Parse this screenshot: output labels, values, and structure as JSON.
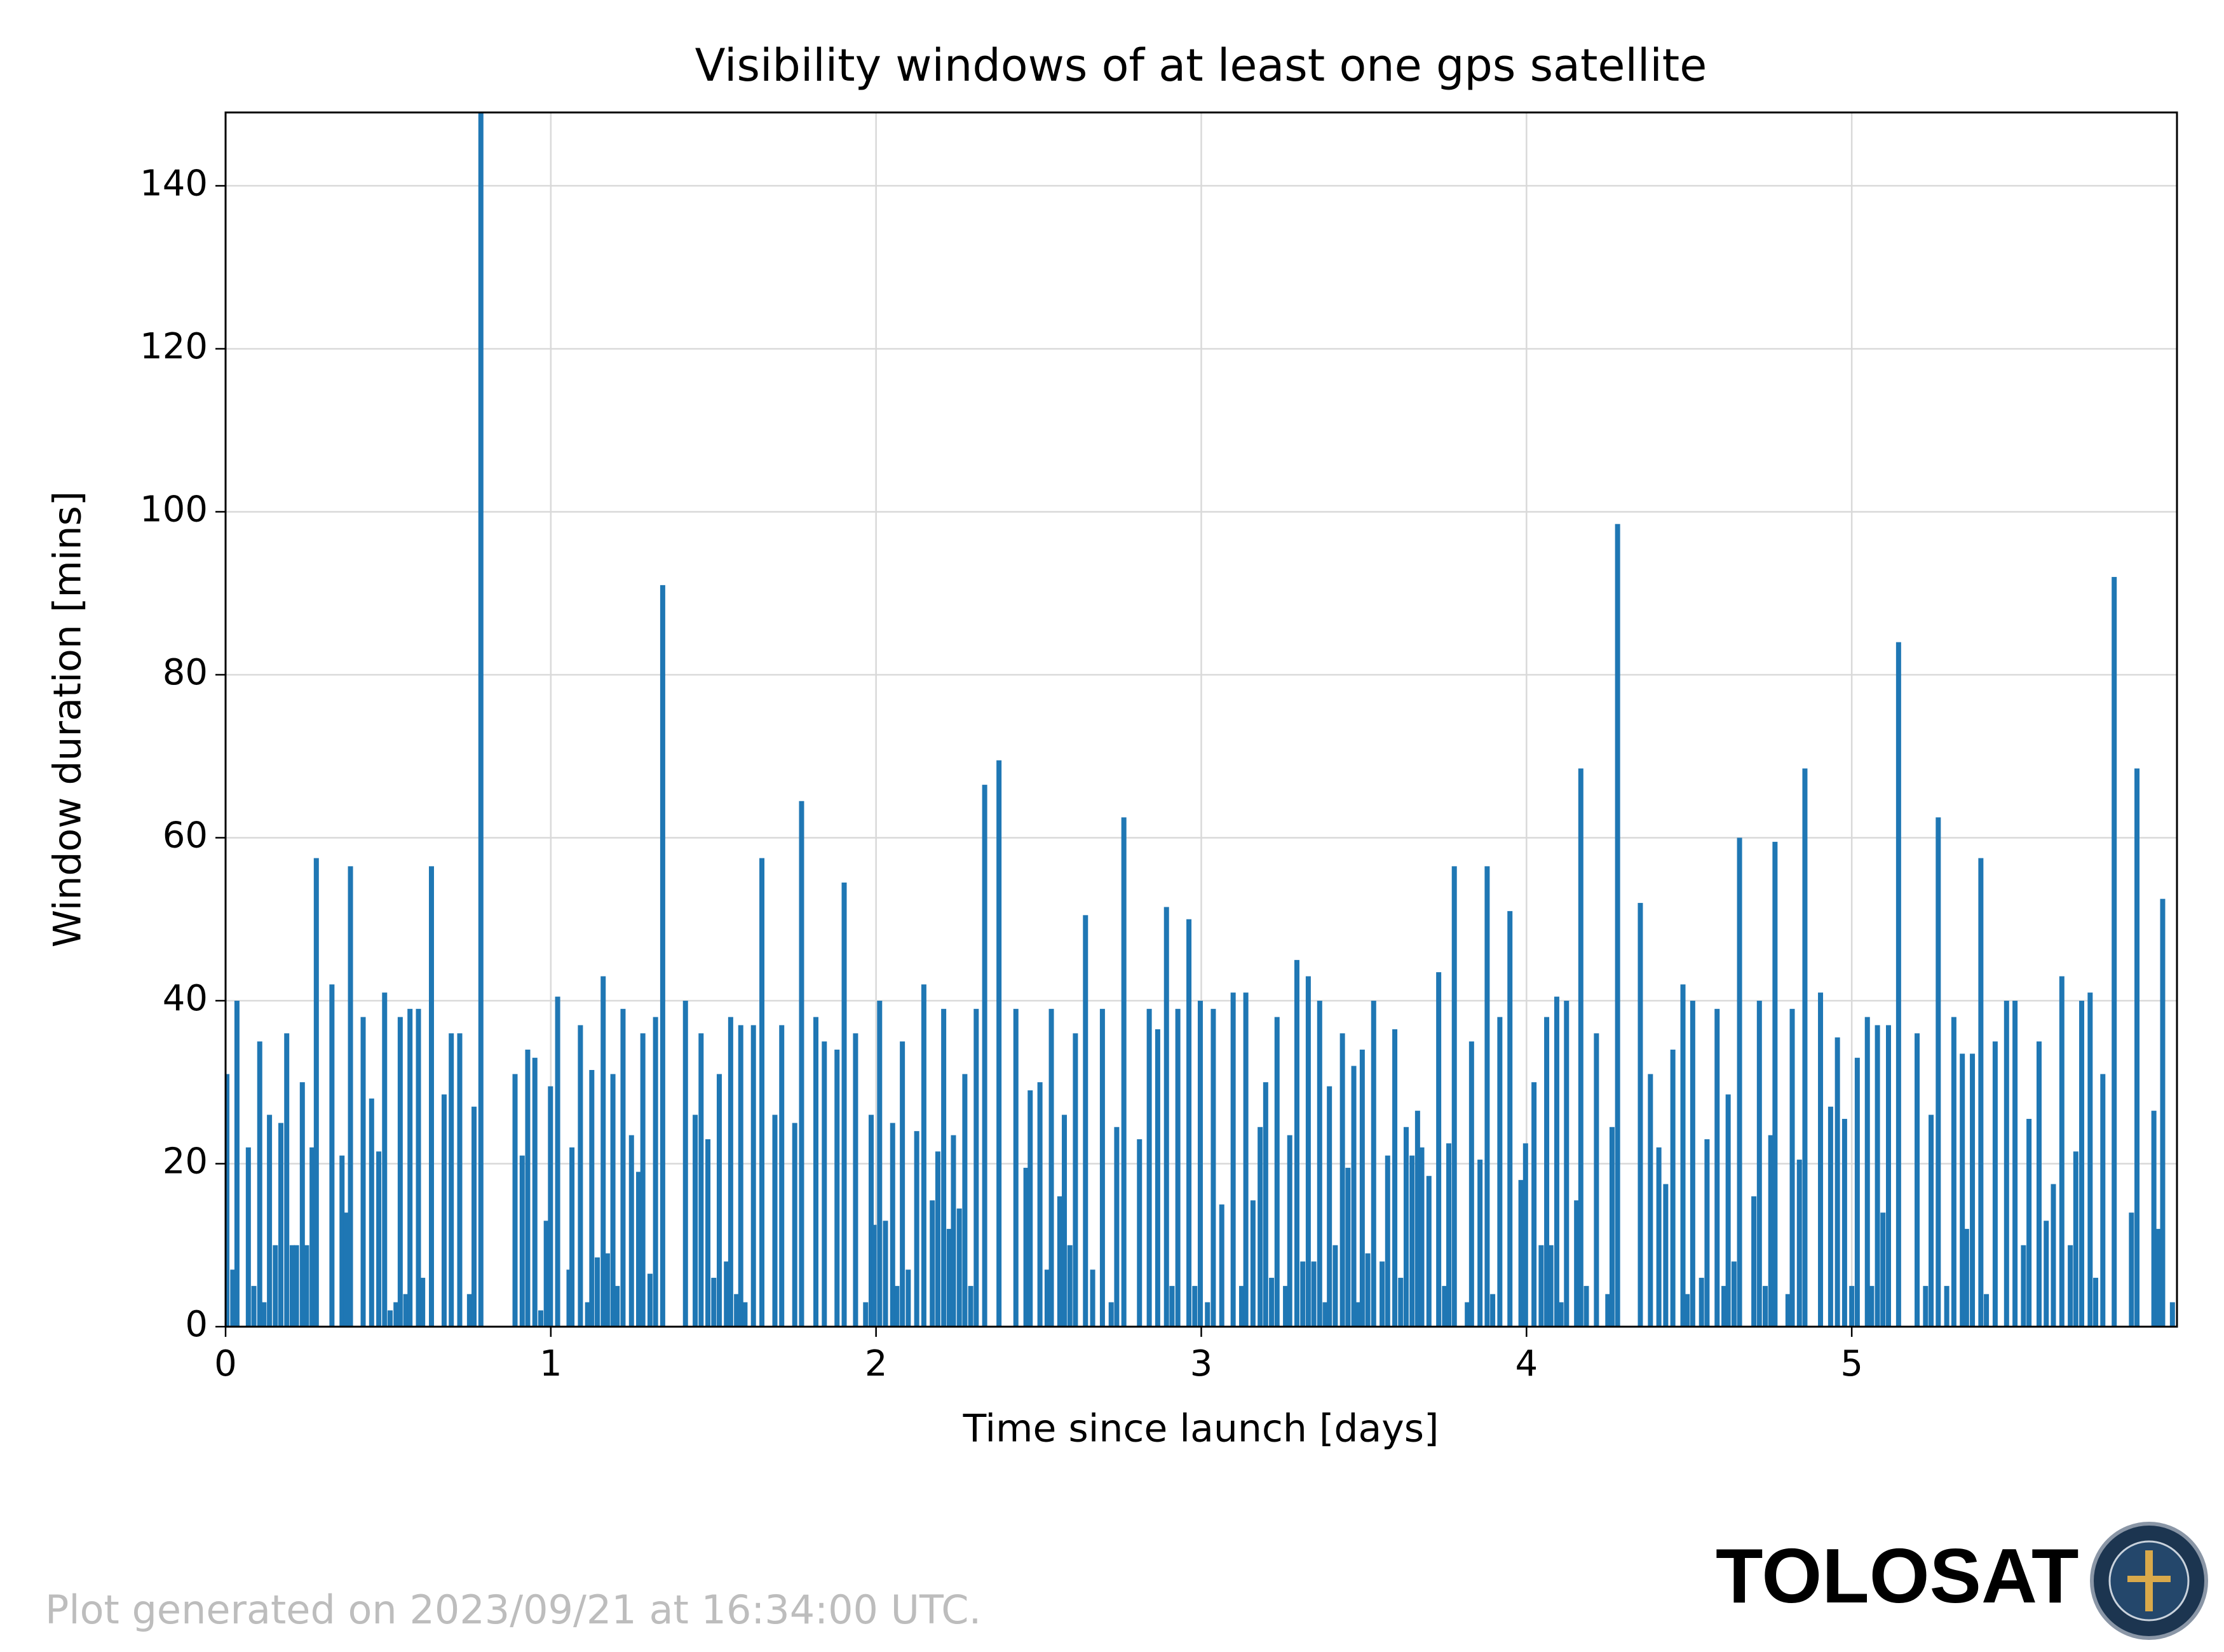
{
  "chart_data": {
    "type": "bar",
    "title": "Visibility windows of at least one gps satellite",
    "xlabel": "Time since launch [days]",
    "ylabel": "Window duration [mins]",
    "color": "#1f77b4",
    "grid": true,
    "xlim": [
      0,
      6
    ],
    "ylim": [
      0,
      149
    ],
    "xticks": [
      0,
      1,
      2,
      3,
      4,
      5
    ],
    "yticks": [
      0,
      20,
      40,
      60,
      80,
      100,
      120,
      140
    ],
    "x": [
      0.004,
      0.022,
      0.035,
      0.07,
      0.087,
      0.105,
      0.118,
      0.135,
      0.153,
      0.17,
      0.188,
      0.205,
      0.218,
      0.236,
      0.249,
      0.266,
      0.279,
      0.327,
      0.358,
      0.371,
      0.384,
      0.423,
      0.449,
      0.471,
      0.489,
      0.506,
      0.524,
      0.537,
      0.554,
      0.567,
      0.593,
      0.606,
      0.633,
      0.672,
      0.694,
      0.72,
      0.75,
      0.764,
      0.785,
      0.89,
      0.912,
      0.929,
      0.951,
      0.969,
      0.986,
      0.999,
      1.021,
      1.056,
      1.065,
      1.091,
      1.113,
      1.126,
      1.143,
      1.161,
      1.174,
      1.191,
      1.204,
      1.222,
      1.248,
      1.27,
      1.283,
      1.305,
      1.322,
      1.344,
      1.414,
      1.444,
      1.462,
      1.483,
      1.501,
      1.518,
      1.54,
      1.553,
      1.571,
      1.584,
      1.597,
      1.623,
      1.649,
      1.689,
      1.71,
      1.75,
      1.771,
      1.815,
      1.841,
      1.88,
      1.902,
      1.937,
      1.968,
      1.985,
      1.994,
      2.011,
      2.029,
      2.051,
      2.064,
      2.081,
      2.099,
      2.125,
      2.147,
      2.173,
      2.19,
      2.208,
      2.225,
      2.238,
      2.256,
      2.273,
      2.291,
      2.308,
      2.334,
      2.378,
      2.43,
      2.461,
      2.474,
      2.504,
      2.526,
      2.539,
      2.565,
      2.579,
      2.596,
      2.613,
      2.644,
      2.666,
      2.696,
      2.723,
      2.74,
      2.762,
      2.81,
      2.84,
      2.866,
      2.893,
      2.91,
      2.928,
      2.962,
      2.98,
      2.997,
      3.019,
      3.037,
      3.063,
      3.098,
      3.124,
      3.137,
      3.159,
      3.181,
      3.198,
      3.216,
      3.233,
      3.259,
      3.272,
      3.294,
      3.312,
      3.329,
      3.346,
      3.364,
      3.381,
      3.394,
      3.412,
      3.434,
      3.451,
      3.469,
      3.482,
      3.495,
      3.512,
      3.53,
      3.556,
      3.573,
      3.595,
      3.613,
      3.63,
      3.648,
      3.665,
      3.678,
      3.7,
      3.73,
      3.748,
      3.761,
      3.778,
      3.818,
      3.831,
      3.857,
      3.879,
      3.896,
      3.918,
      3.949,
      3.983,
      3.997,
      4.023,
      4.045,
      4.062,
      4.075,
      4.093,
      4.106,
      4.123,
      4.154,
      4.167,
      4.184,
      4.215,
      4.25,
      4.263,
      4.28,
      4.35,
      4.381,
      4.407,
      4.428,
      4.45,
      4.481,
      4.494,
      4.511,
      4.538,
      4.555,
      4.586,
      4.607,
      4.62,
      4.638,
      4.655,
      4.699,
      4.716,
      4.734,
      4.751,
      4.764,
      4.804,
      4.817,
      4.839,
      4.856,
      4.904,
      4.935,
      4.956,
      4.978,
      5.0,
      5.017,
      5.048,
      5.061,
      5.079,
      5.096,
      5.113,
      5.144,
      5.201,
      5.227,
      5.244,
      5.266,
      5.292,
      5.314,
      5.34,
      5.353,
      5.371,
      5.397,
      5.414,
      5.441,
      5.476,
      5.502,
      5.528,
      5.545,
      5.576,
      5.598,
      5.62,
      5.646,
      5.672,
      5.689,
      5.707,
      5.733,
      5.75,
      5.772,
      5.807,
      5.86,
      5.877,
      5.929,
      5.942,
      5.956,
      5.986
    ],
    "values": [
      31,
      7,
      40,
      22,
      5,
      35,
      3,
      26,
      10,
      25,
      36,
      10,
      10,
      30,
      10,
      22,
      57.5,
      42,
      21,
      14,
      56.5,
      38,
      28,
      21.5,
      41,
      2,
      3,
      38,
      4,
      39,
      39,
      6,
      56.5,
      28.5,
      36,
      36,
      4,
      27,
      150,
      31,
      21,
      34,
      33,
      2,
      13,
      29.5,
      40.5,
      7,
      22,
      37,
      3,
      31.5,
      8.5,
      43,
      9,
      31,
      5,
      39,
      23.5,
      19,
      36,
      6.5,
      38,
      91,
      40,
      26,
      36,
      23,
      6,
      31,
      8,
      38,
      4,
      37,
      3,
      37,
      57.5,
      26,
      37,
      25,
      64.5,
      38,
      35,
      34,
      54.5,
      36,
      3,
      26,
      12.5,
      40,
      13,
      25,
      5,
      35,
      7,
      24,
      42,
      15.5,
      21.5,
      39,
      12,
      23.5,
      14.5,
      31,
      5,
      39,
      66.5,
      69.5,
      39,
      19.5,
      29,
      30,
      7,
      39,
      16,
      26,
      10,
      36,
      50.5,
      7,
      39,
      3,
      24.5,
      62.5,
      23,
      39,
      36.5,
      51.5,
      5,
      39,
      50,
      5,
      40,
      3,
      39,
      15,
      41,
      5,
      41,
      15.5,
      24.5,
      30,
      6,
      38,
      5,
      23.5,
      45,
      8,
      43,
      8,
      40,
      3,
      29.5,
      10,
      36,
      19.5,
      32,
      3,
      34,
      9,
      40,
      8,
      21,
      36.5,
      6,
      24.5,
      21,
      26.5,
      22,
      18.5,
      43.5,
      5,
      22.5,
      56.5,
      3,
      35,
      20.5,
      56.5,
      4,
      38,
      51,
      18,
      22.5,
      30,
      10,
      38,
      10,
      40.5,
      3,
      40,
      15.5,
      68.5,
      5,
      36,
      4,
      24.5,
      98.5,
      52,
      31,
      22,
      17.5,
      34,
      42,
      4,
      40,
      6,
      23,
      39,
      5,
      28.5,
      8,
      60,
      16,
      40,
      5,
      23.5,
      59.5,
      4,
      39,
      20.5,
      68.5,
      41,
      27,
      35.5,
      25.5,
      5,
      33,
      38,
      5,
      37,
      14,
      37,
      84,
      36,
      5,
      26,
      62.5,
      5,
      38,
      33.5,
      12,
      33.5,
      57.5,
      4,
      35,
      40,
      40,
      10,
      25.5,
      35,
      13,
      17.5,
      43,
      10,
      21.5,
      40,
      41,
      6,
      31,
      92,
      14,
      68.5,
      26.5,
      12,
      52.5,
      3
    ]
  },
  "footer": {
    "note": "Plot generated on 2023/09/21 at 16:34:00 UTC.",
    "brand": "TOLOSAT"
  }
}
